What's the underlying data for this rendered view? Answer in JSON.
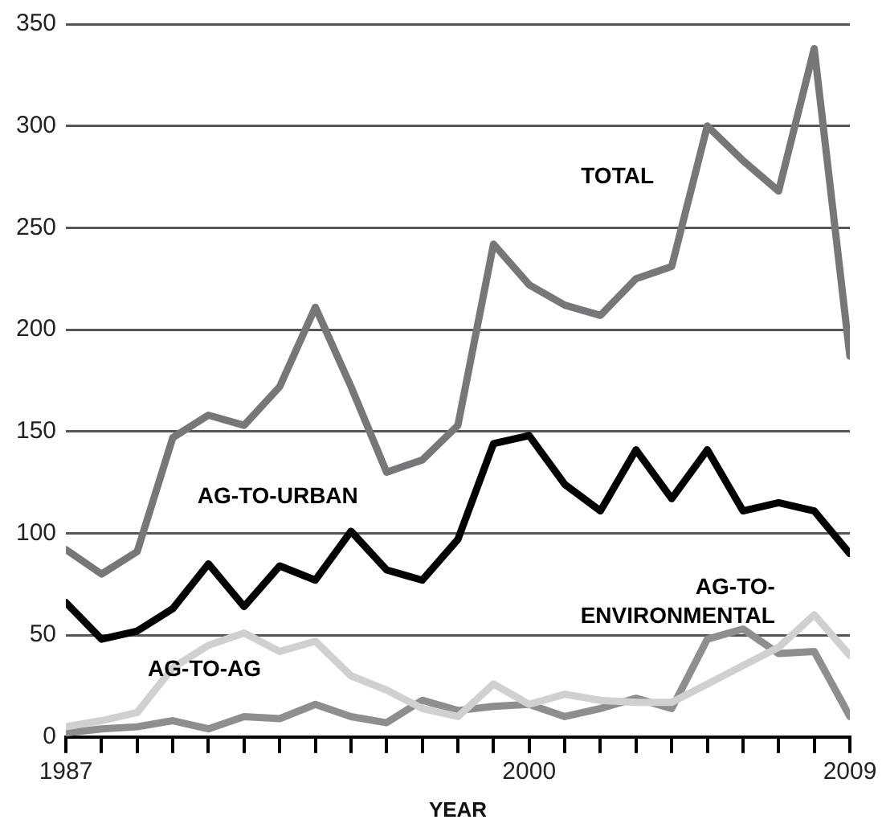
{
  "chart_data": {
    "type": "line",
    "xlabel": "YEAR",
    "x": [
      1987,
      1988,
      1989,
      1990,
      1991,
      1992,
      1993,
      1994,
      1995,
      1996,
      1997,
      1998,
      1999,
      2000,
      2001,
      2002,
      2003,
      2004,
      2005,
      2006,
      2007,
      2008,
      2009
    ],
    "series": [
      {
        "name": "TOTAL",
        "color": "#77777a",
        "values": [
          92,
          80,
          91,
          147,
          158,
          153,
          172,
          211,
          172,
          130,
          136,
          153,
          242,
          222,
          212,
          207,
          225,
          231,
          300,
          283,
          268,
          338,
          187
        ]
      },
      {
        "name": "AG-TO-URBAN",
        "color": "#000000",
        "values": [
          66,
          48,
          52,
          63,
          85,
          64,
          84,
          77,
          101,
          82,
          77,
          97,
          144,
          148,
          124,
          111,
          141,
          117,
          141,
          111,
          115,
          111,
          90
        ]
      },
      {
        "name": "AG-TO-AG",
        "color": "#d0d0d0",
        "values": [
          5,
          8,
          12,
          34,
          45,
          51,
          42,
          47,
          30,
          23,
          14,
          10,
          26,
          16,
          21,
          18,
          17,
          17,
          26,
          35,
          44,
          60,
          40
        ]
      },
      {
        "name": "AG-TO-ENVIRONMENTAL",
        "color": "#8e8e8e",
        "values": [
          2,
          4,
          5,
          8,
          4,
          10,
          9,
          16,
          10,
          7,
          18,
          13,
          15,
          16,
          10,
          14,
          19,
          14,
          48,
          53,
          41,
          42,
          10
        ]
      }
    ],
    "xlim": [
      1987,
      2009
    ],
    "xticks": [
      1987,
      {
        "value": 1988,
        "label": null
      },
      {
        "value": 1989,
        "label": null
      },
      {
        "value": 1990,
        "label": null
      },
      {
        "value": 1991,
        "label": null
      },
      {
        "value": 1992,
        "label": null
      },
      {
        "value": 1993,
        "label": null
      },
      {
        "value": 1994,
        "label": null
      },
      {
        "value": 1995,
        "label": null
      },
      {
        "value": 1996,
        "label": null
      },
      {
        "value": 1997,
        "label": null
      },
      {
        "value": 1998,
        "label": null
      },
      {
        "value": 1999,
        "label": null
      },
      2000,
      {
        "value": 2001,
        "label": null
      },
      {
        "value": 2002,
        "label": null
      },
      {
        "value": 2003,
        "label": null
      },
      {
        "value": 2004,
        "label": null
      },
      {
        "value": 2005,
        "label": null
      },
      {
        "value": 2006,
        "label": null
      },
      {
        "value": 2007,
        "label": null
      },
      {
        "value": 2008,
        "label": null
      },
      2009
    ],
    "ylim": [
      0,
      350
    ],
    "yticks": [
      0,
      50,
      100,
      150,
      200,
      250,
      300,
      350
    ],
    "grid": "y",
    "legend": false,
    "marker": "none",
    "line_style": "solid"
  }
}
